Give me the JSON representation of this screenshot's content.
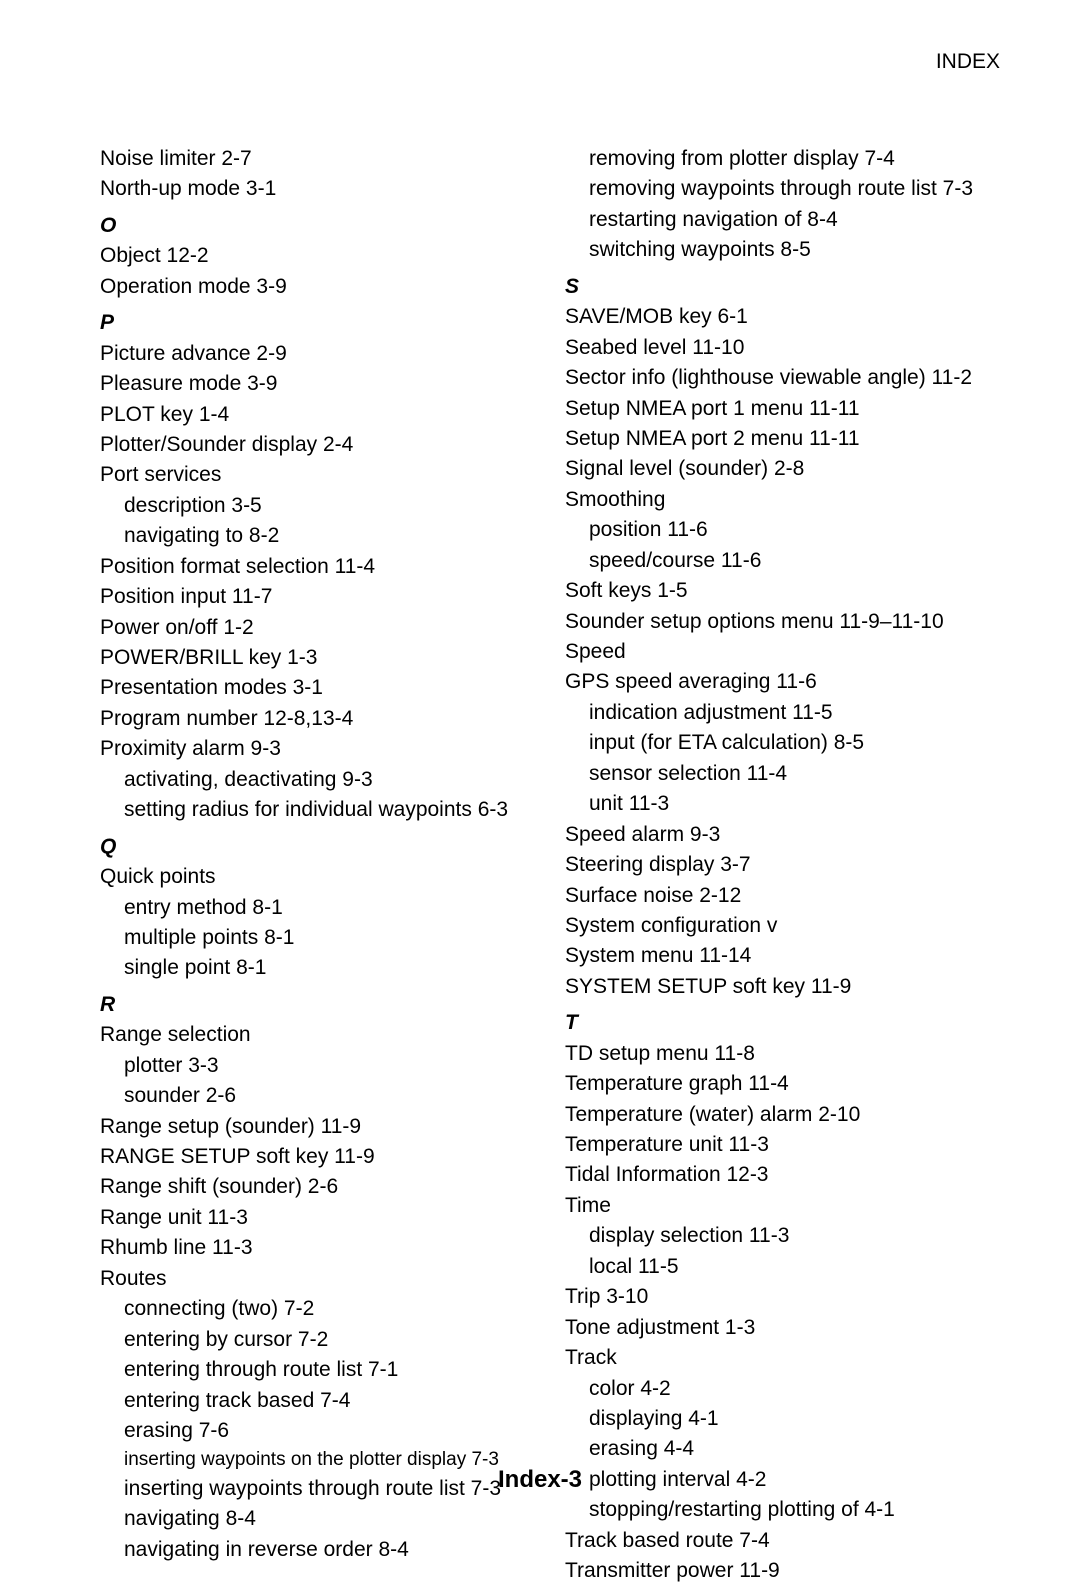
{
  "header": "INDEX",
  "footer": "Index-3",
  "left": [
    {
      "t": "Noise limiter   2-7"
    },
    {
      "t": "North-up mode   3-1"
    },
    {
      "t": "O",
      "letter": true
    },
    {
      "t": "Object   12-2"
    },
    {
      "t": "Operation mode   3-9"
    },
    {
      "t": "P",
      "letter": true
    },
    {
      "t": "Picture advance   2-9"
    },
    {
      "t": "Pleasure mode   3-9"
    },
    {
      "t": "PLOT key   1-4"
    },
    {
      "t": "Plotter/Sounder display   2-4"
    },
    {
      "t": "Port services"
    },
    {
      "t": "description   3-5",
      "i": 1
    },
    {
      "t": "navigating to   8-2",
      "i": 1
    },
    {
      "t": "Position format selection   11-4"
    },
    {
      "t": "Position input   11-7"
    },
    {
      "t": "Power on/off   1-2"
    },
    {
      "t": "POWER/BRILL key   1-3"
    },
    {
      "t": "Presentation modes   3-1"
    },
    {
      "t": "Program number   12-8,13-4"
    },
    {
      "t": "Proximity alarm   9-3"
    },
    {
      "t": "activating, deactivating   9-3",
      "i": 1
    },
    {
      "t": "setting radius for individual waypoints   6-3",
      "i": 1
    },
    {
      "t": "Q",
      "letter": true
    },
    {
      "t": "Quick points"
    },
    {
      "t": "entry method   8-1",
      "i": 1
    },
    {
      "t": "multiple points   8-1",
      "i": 1
    },
    {
      "t": "single point   8-1",
      "i": 1
    },
    {
      "t": "R",
      "letter": true
    },
    {
      "t": "Range selection"
    },
    {
      "t": "plotter   3-3",
      "i": 1
    },
    {
      "t": "sounder   2-6",
      "i": 1
    },
    {
      "t": "Range setup (sounder)   11-9"
    },
    {
      "t": "RANGE SETUP soft key   11-9"
    },
    {
      "t": "Range shift (sounder)   2-6"
    },
    {
      "t": "Range unit   11-3"
    },
    {
      "t": "Rhumb line   11-3"
    },
    {
      "t": "Routes"
    },
    {
      "t": "connecting (two)   7-2",
      "i": 1
    },
    {
      "t": "entering by cursor   7-2",
      "i": 1
    },
    {
      "t": "entering through route list   7-1",
      "i": 1
    },
    {
      "t": "entering track based   7-4",
      "i": 1
    },
    {
      "t": "erasing   7-6",
      "i": 1
    },
    {
      "t": "inserting waypoints on the plotter display   7-3",
      "i": 1,
      "small": true
    },
    {
      "t": "inserting waypoints through route list   7-3",
      "i": 1
    },
    {
      "t": "navigating   8-4",
      "i": 1
    },
    {
      "t": "navigating in reverse order   8-4",
      "i": 1
    }
  ],
  "right": [
    {
      "t": "removing from plotter display   7-4",
      "i": 1
    },
    {
      "t": "removing waypoints through route list   7-3",
      "i": 1
    },
    {
      "t": "restarting navigation of   8-4",
      "i": 1
    },
    {
      "t": "switching waypoints   8-5",
      "i": 1
    },
    {
      "t": "S",
      "letter": true
    },
    {
      "t": "SAVE/MOB key   6-1"
    },
    {
      "t": "Seabed level   11-10"
    },
    {
      "t": "Sector info (lighthouse viewable angle)   11-2"
    },
    {
      "t": "Setup NMEA port 1 menu   11-11"
    },
    {
      "t": "Setup NMEA port 2 menu   11-11"
    },
    {
      "t": "Signal level (sounder)   2-8"
    },
    {
      "t": "Smoothing"
    },
    {
      "t": "position   11-6",
      "i": 1
    },
    {
      "t": "speed/course   11-6",
      "i": 1
    },
    {
      "t": "Soft keys   1-5"
    },
    {
      "t": "Sounder setup options menu   11-9–11-10"
    },
    {
      "t": "Speed"
    },
    {
      "t": "GPS speed averaging   11-6"
    },
    {
      "t": "indication adjustment   11-5",
      "i": 1
    },
    {
      "t": "input (for ETA calculation)   8-5",
      "i": 1
    },
    {
      "t": "sensor selection   11-4",
      "i": 1
    },
    {
      "t": "unit   11-3",
      "i": 1
    },
    {
      "t": "Speed alarm   9-3"
    },
    {
      "t": "Steering display   3-7"
    },
    {
      "t": "Surface noise   2-12"
    },
    {
      "t": "System configuration   v"
    },
    {
      "t": "System menu   11-14"
    },
    {
      "t": "SYSTEM SETUP soft key   11-9"
    },
    {
      "t": "T",
      "letter": true
    },
    {
      "t": "TD setup menu   11-8"
    },
    {
      "t": "Temperature graph   11-4"
    },
    {
      "t": "Temperature (water) alarm   2-10"
    },
    {
      "t": "Temperature unit 11-3"
    },
    {
      "t": "Tidal Information 12-3"
    },
    {
      "t": "Time"
    },
    {
      "t": "display selection   11-3",
      "i": 1
    },
    {
      "t": "local   11-5",
      "i": 1
    },
    {
      "t": "Trip     3-10"
    },
    {
      "t": "Tone adjustment   1-3"
    },
    {
      "t": "Track"
    },
    {
      "t": "color   4-2",
      "i": 1
    },
    {
      "t": "displaying   4-1",
      "i": 1
    },
    {
      "t": "erasing   4-4",
      "i": 1
    },
    {
      "t": "plotting interval   4-2",
      "i": 1
    },
    {
      "t": "stopping/restarting plotting of   4-1",
      "i": 1
    },
    {
      "t": "Track based route   7-4"
    },
    {
      "t": "Transmitter power   11-9"
    }
  ]
}
